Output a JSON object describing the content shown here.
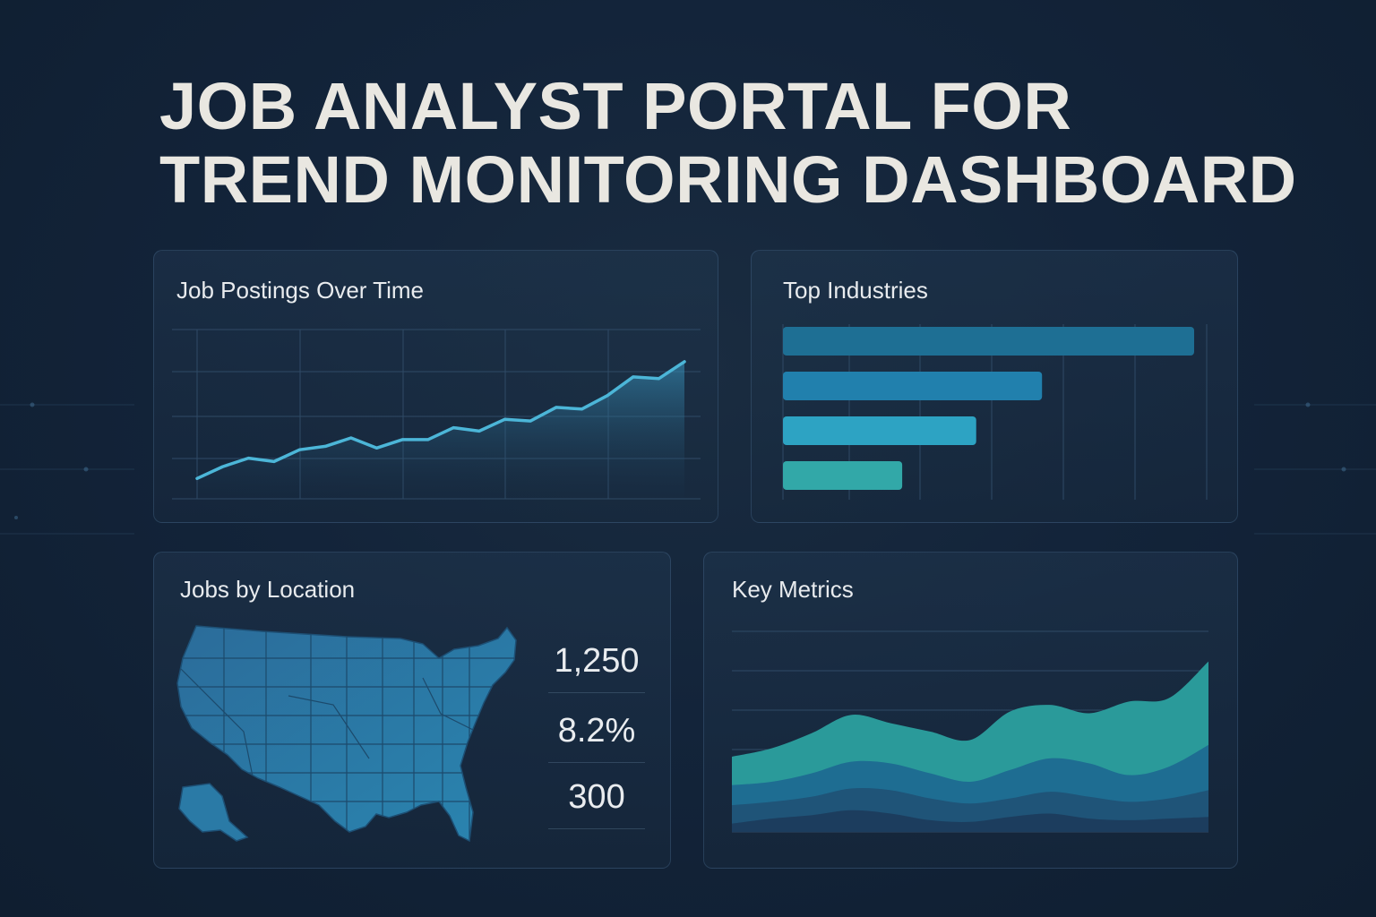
{
  "page": {
    "title_line1": "JOB ANALYST PORTAL FOR",
    "title_line2": "TREND MONITORING DASHBOARD"
  },
  "colors": {
    "background": "#13243a",
    "title_text": "#e9e7e1",
    "line_accent": "#4cb6d8",
    "bar_1": "#1e6f94",
    "bar_2": "#2180ad",
    "bar_3": "#2da3c3",
    "bar_4": "#32a8a8",
    "map_fill": "#2a79a6",
    "stream_top": "#2a9a9a",
    "stream_mid": "#1e6d92",
    "stream_low": "#1f5478",
    "stream_bottom": "#1c3d5e"
  },
  "cards": {
    "postings": {
      "title": "Job Postings Over Time"
    },
    "industries": {
      "title": "Top Industries"
    },
    "location": {
      "title": "Jobs by Location"
    },
    "metrics": {
      "title": "Key Metrics"
    }
  },
  "stats": [
    "1,250",
    "8.2%",
    "300"
  ],
  "chart_data": [
    {
      "id": "postings",
      "type": "area",
      "title": "Job Postings Over Time",
      "x": [
        1,
        2,
        3,
        4,
        5,
        6,
        7,
        8,
        9,
        10,
        11,
        12,
        13,
        14,
        15,
        16,
        17,
        18,
        19,
        20
      ],
      "values": [
        12,
        19,
        24,
        22,
        29,
        31,
        36,
        30,
        35,
        35,
        42,
        40,
        47,
        46,
        54,
        53,
        61,
        72,
        71,
        81
      ],
      "ylim": [
        0,
        100
      ],
      "grid": true
    },
    {
      "id": "industries",
      "type": "bar",
      "orientation": "horizontal",
      "title": "Top Industries",
      "categories": [
        "",
        "",
        "",
        ""
      ],
      "values": [
        100,
        63,
        47,
        29
      ],
      "xlim": [
        0,
        100
      ],
      "grid": true
    },
    {
      "id": "metrics",
      "type": "area",
      "stacked": true,
      "title": "Key Metrics",
      "x": [
        0,
        1,
        2,
        3,
        4,
        5,
        6,
        7,
        8,
        9,
        10,
        11,
        12
      ],
      "series": [
        {
          "values": [
            5,
            8,
            10,
            13,
            11,
            7,
            6,
            9,
            11,
            8,
            7,
            8,
            9
          ]
        },
        {
          "values": [
            11,
            10,
            11,
            13,
            14,
            13,
            11,
            11,
            13,
            13,
            11,
            12,
            16
          ]
        },
        {
          "values": [
            12,
            12,
            14,
            16,
            16,
            15,
            13,
            17,
            20,
            20,
            16,
            19,
            27
          ]
        },
        {
          "values": [
            17,
            20,
            24,
            28,
            24,
            25,
            25,
            35,
            32,
            30,
            44,
            41,
            50
          ]
        }
      ],
      "ylim": [
        0,
        120
      ],
      "grid": true
    }
  ]
}
